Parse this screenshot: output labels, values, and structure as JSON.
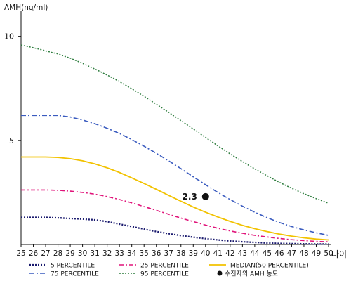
{
  "chart_data": {
    "type": "line",
    "title": "",
    "ylabel": "AMH(ng/ml)",
    "xlabel": "나이",
    "x": [
      25,
      26,
      27,
      28,
      29,
      30,
      31,
      32,
      33,
      34,
      35,
      36,
      37,
      38,
      39,
      40,
      41,
      42,
      43,
      44,
      45,
      46,
      47,
      48,
      49,
      50
    ],
    "xlim": [
      25,
      50
    ],
    "ylim": [
      0,
      11
    ],
    "yticks": [
      5,
      10
    ],
    "grid": false,
    "legend_position": "bottom",
    "series": [
      {
        "name": "5 PERCENTILE",
        "color": "#1a1a6e",
        "dash": "2,2",
        "width": 2.2,
        "values": [
          1.3,
          1.3,
          1.3,
          1.28,
          1.25,
          1.22,
          1.18,
          1.1,
          0.98,
          0.86,
          0.74,
          0.62,
          0.52,
          0.43,
          0.35,
          0.28,
          0.22,
          0.17,
          0.13,
          0.1,
          0.07,
          0.05,
          0.04,
          0.03,
          0.02,
          0.02
        ]
      },
      {
        "name": "25 PERCENTILE",
        "color": "#e0147a",
        "dash": "6,3,2,3",
        "width": 1.6,
        "values": [
          2.62,
          2.62,
          2.62,
          2.6,
          2.56,
          2.5,
          2.42,
          2.3,
          2.16,
          2.0,
          1.82,
          1.64,
          1.45,
          1.27,
          1.1,
          0.93,
          0.78,
          0.65,
          0.54,
          0.44,
          0.36,
          0.29,
          0.23,
          0.19,
          0.15,
          0.13
        ]
      },
      {
        "name": "MEDIAN(50 PERCENTILE)",
        "color": "#f2c200",
        "dash": "",
        "width": 1.8,
        "values": [
          4.2,
          4.2,
          4.2,
          4.18,
          4.12,
          4.02,
          3.87,
          3.68,
          3.46,
          3.2,
          2.93,
          2.65,
          2.36,
          2.08,
          1.8,
          1.55,
          1.32,
          1.11,
          0.92,
          0.76,
          0.62,
          0.5,
          0.4,
          0.32,
          0.26,
          0.22
        ]
      },
      {
        "name": "75 PERCENTILE",
        "color": "#3a5bbf",
        "dash": "7,3,2,3",
        "width": 1.6,
        "values": [
          6.2,
          6.2,
          6.2,
          6.2,
          6.12,
          5.98,
          5.8,
          5.58,
          5.33,
          5.04,
          4.72,
          4.38,
          4.02,
          3.64,
          3.25,
          2.87,
          2.5,
          2.16,
          1.84,
          1.55,
          1.29,
          1.06,
          0.86,
          0.7,
          0.56,
          0.44
        ]
      },
      {
        "name": "95 PERCENTILE",
        "color": "#2e7d3e",
        "dash": "2,2",
        "width": 1.5,
        "values": [
          9.58,
          9.45,
          9.3,
          9.15,
          8.95,
          8.7,
          8.43,
          8.14,
          7.82,
          7.48,
          7.12,
          6.74,
          6.35,
          5.95,
          5.55,
          5.14,
          4.74,
          4.35,
          3.98,
          3.63,
          3.3,
          2.99,
          2.7,
          2.44,
          2.2,
          1.98
        ]
      }
    ],
    "point": {
      "x": 40,
      "y": 2.3,
      "label": "2.3",
      "legend": "수진자의 AMH 농도",
      "color": "#111111"
    }
  }
}
